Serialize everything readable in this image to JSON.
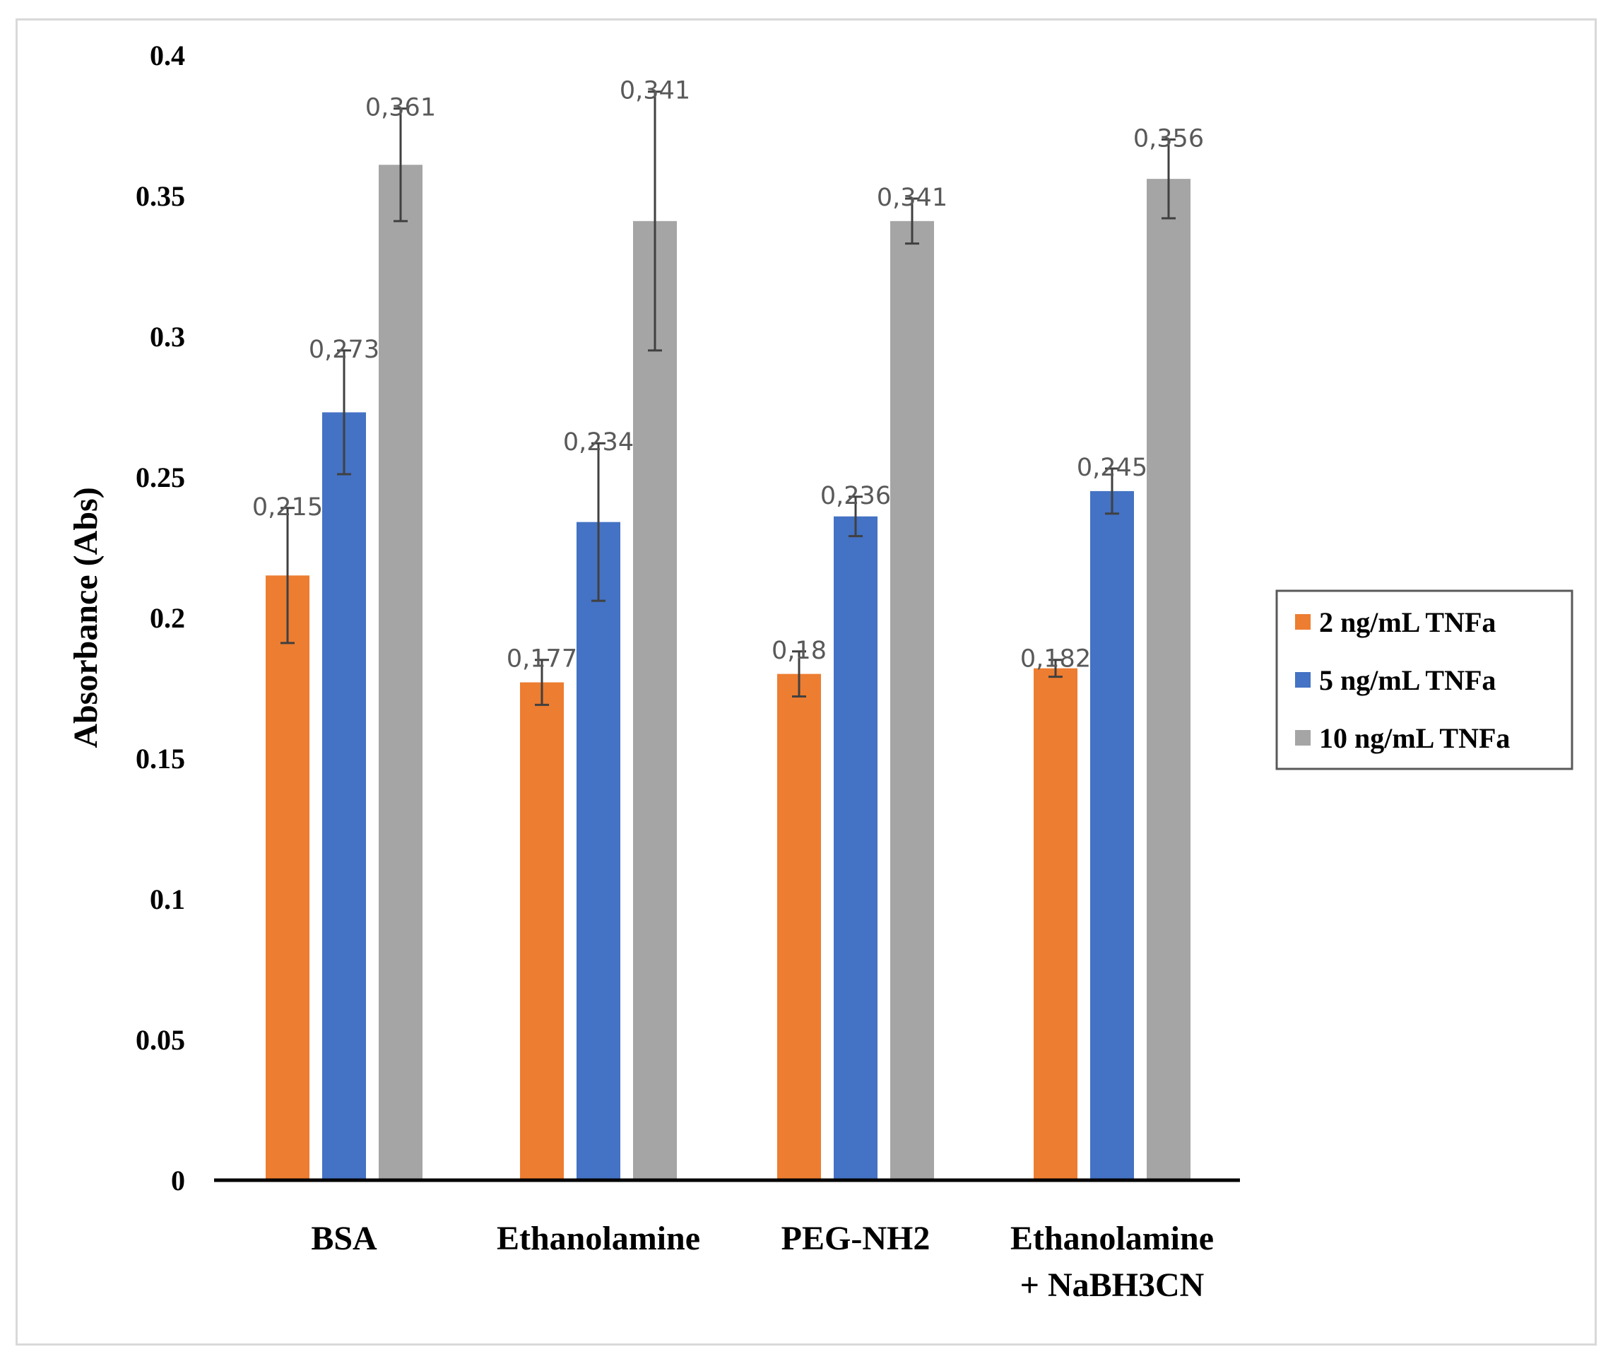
{
  "chart_data": {
    "type": "bar",
    "title": "",
    "xlabel": "",
    "ylabel": "Absorbance (Abs)",
    "ylim": [
      0,
      0.4
    ],
    "yticks": [
      0,
      0.05,
      0.1,
      0.15,
      0.2,
      0.25,
      0.3,
      0.35,
      0.4
    ],
    "ytick_labels": [
      "0",
      "0.05",
      "0.1",
      "0.15",
      "0.2",
      "0.25",
      "0.3",
      "0.35",
      "0.4"
    ],
    "grid": false,
    "legend_position": "right",
    "categories": [
      [
        "BSA"
      ],
      [
        "Ethanolamine"
      ],
      [
        "PEG-NH2"
      ],
      [
        "Ethanolamine",
        "+ NaBH3CN"
      ]
    ],
    "series": [
      {
        "name": "2 ng/mL TNFa",
        "color": "#ed7d31",
        "values": [
          0.215,
          0.177,
          0.18,
          0.182
        ],
        "errors": [
          0.024,
          0.008,
          0.008,
          0.003
        ],
        "labels": [
          "0,215",
          "0,177",
          "0,18",
          "0,182"
        ]
      },
      {
        "name": "5 ng/mL TNFa",
        "color": "#4472c4",
        "values": [
          0.273,
          0.234,
          0.236,
          0.245
        ],
        "errors": [
          0.022,
          0.028,
          0.007,
          0.008
        ],
        "labels": [
          "0,273",
          "0,234",
          "0,236",
          "0,245"
        ]
      },
      {
        "name": "10 ng/mL TNFa",
        "color": "#a5a5a5",
        "values": [
          0.361,
          0.341,
          0.341,
          0.356
        ],
        "errors": [
          0.02,
          0.046,
          0.008,
          0.014
        ],
        "labels": [
          "0,361",
          "0,341",
          "0,341",
          "0,356"
        ]
      }
    ]
  }
}
